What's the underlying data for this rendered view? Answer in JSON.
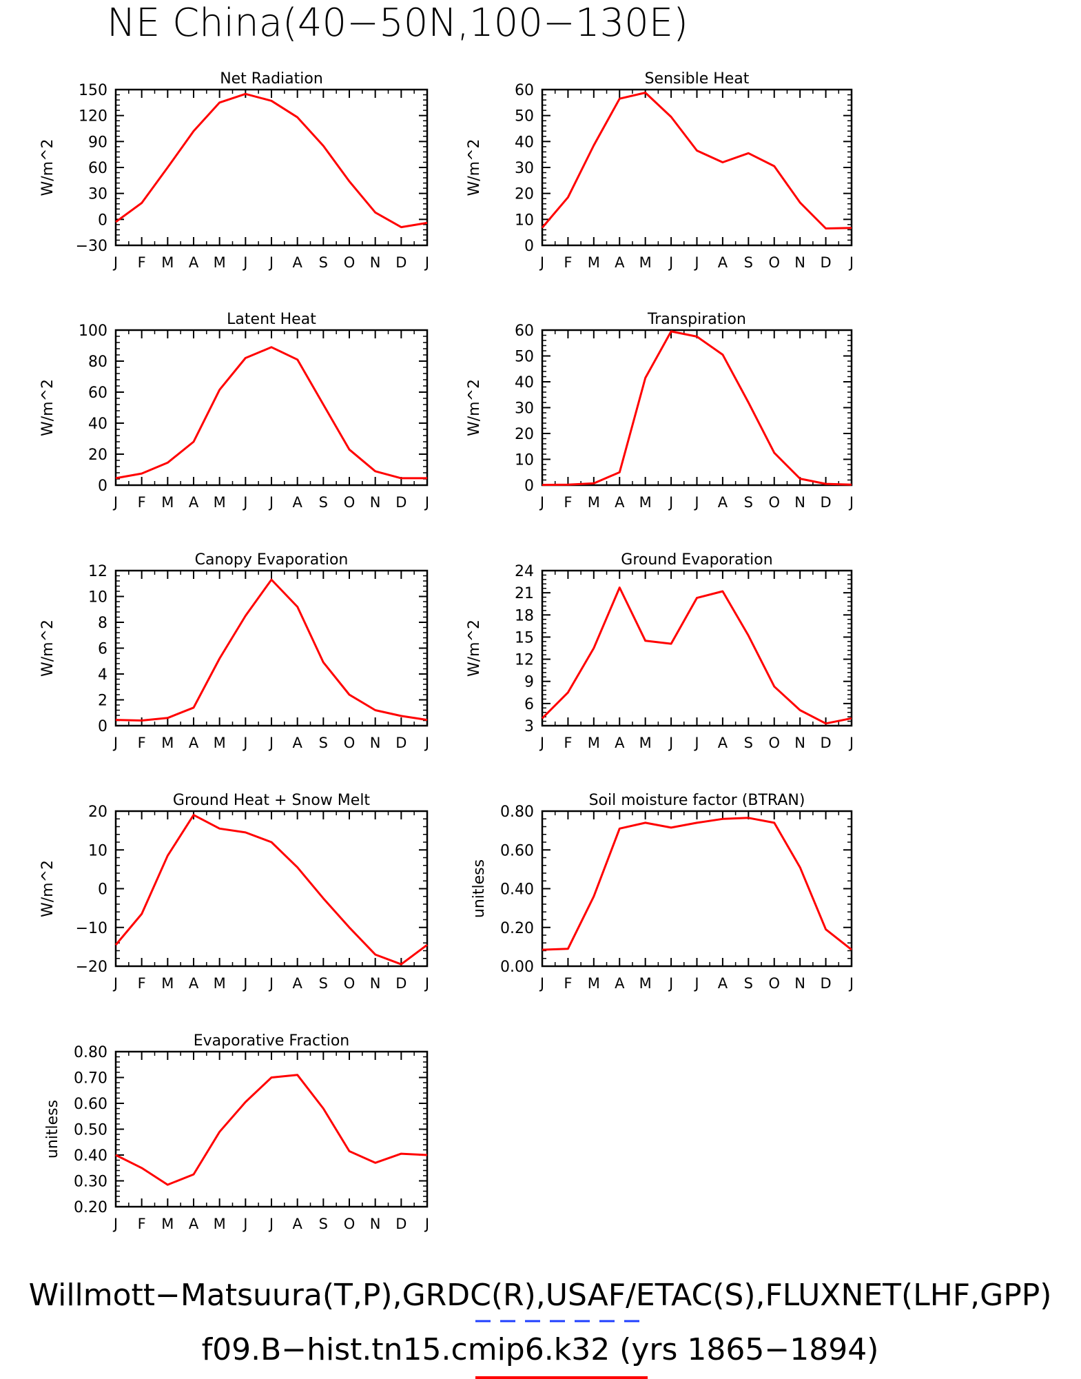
{
  "figure": {
    "title": "NE China(40−50N,100−130E)",
    "footer_line1": "Willmott−Matsuura(T,P),GRDC(R),USAF/ETAC(S),FLUXNET(LHF,GPP)",
    "footer_line2": "f09.B−hist.tn15.cmip6.k32 (yrs 1865−1894)",
    "line_color": "#ff0000",
    "obs_dash_color": "#1f3fff"
  },
  "chart_data": [
    {
      "type": "line",
      "title": "Net Radiation",
      "ylabel": "W/m^2",
      "categories": [
        "J",
        "F",
        "M",
        "A",
        "M",
        "J",
        "J",
        "A",
        "S",
        "O",
        "N",
        "D",
        "J"
      ],
      "ylim": [
        -30,
        150
      ],
      "yticks": [
        -30,
        0,
        30,
        60,
        90,
        120,
        150
      ],
      "ytick_labels": [
        "−30",
        "0",
        "30",
        "60",
        "90",
        "120",
        "150"
      ],
      "values": [
        -3,
        19,
        60,
        102,
        135,
        145,
        137,
        118,
        85,
        44,
        8,
        -9,
        -4
      ]
    },
    {
      "type": "line",
      "title": "Sensible Heat",
      "ylabel": "W/m^2",
      "categories": [
        "J",
        "F",
        "M",
        "A",
        "M",
        "J",
        "J",
        "A",
        "S",
        "O",
        "N",
        "D",
        "J"
      ],
      "ylim": [
        0,
        60
      ],
      "yticks": [
        0,
        10,
        20,
        30,
        40,
        50,
        60
      ],
      "ytick_labels": [
        "0",
        "10",
        "20",
        "30",
        "40",
        "50",
        "60"
      ],
      "values": [
        6.8,
        18.5,
        38.5,
        56.5,
        58.8,
        49.5,
        36.5,
        32,
        35.5,
        30.5,
        16.5,
        6.5,
        6.7
      ]
    },
    {
      "type": "line",
      "title": "Latent Heat",
      "ylabel": "W/m^2",
      "categories": [
        "J",
        "F",
        "M",
        "A",
        "M",
        "J",
        "J",
        "A",
        "S",
        "O",
        "N",
        "D",
        "J"
      ],
      "ylim": [
        0,
        100
      ],
      "yticks": [
        0,
        20,
        40,
        60,
        80,
        100
      ],
      "ytick_labels": [
        "0",
        "20",
        "40",
        "60",
        "80",
        "100"
      ],
      "values": [
        4.5,
        7.5,
        14.5,
        28,
        61.5,
        82,
        89,
        81,
        52,
        23,
        9,
        4.5,
        4.5
      ]
    },
    {
      "type": "line",
      "title": "Transpiration",
      "ylabel": "W/m^2",
      "categories": [
        "J",
        "F",
        "M",
        "A",
        "M",
        "J",
        "J",
        "A",
        "S",
        "O",
        "N",
        "D",
        "J"
      ],
      "ylim": [
        0,
        60
      ],
      "yticks": [
        0,
        10,
        20,
        30,
        40,
        50,
        60
      ],
      "ytick_labels": [
        "0",
        "10",
        "20",
        "30",
        "40",
        "50",
        "60"
      ],
      "values": [
        0.1,
        0.2,
        0.7,
        5,
        41.5,
        59.5,
        57.5,
        50.5,
        32,
        12.5,
        2.5,
        0.5,
        0.2
      ]
    },
    {
      "type": "line",
      "title": "Canopy Evaporation",
      "ylabel": "W/m^2",
      "categories": [
        "J",
        "F",
        "M",
        "A",
        "M",
        "J",
        "J",
        "A",
        "S",
        "O",
        "N",
        "D",
        "J"
      ],
      "ylim": [
        0,
        12
      ],
      "yticks": [
        0,
        2,
        4,
        6,
        8,
        10,
        12
      ],
      "ytick_labels": [
        "0",
        "2",
        "4",
        "6",
        "8",
        "10",
        "12"
      ],
      "values": [
        0.45,
        0.4,
        0.6,
        1.4,
        5.2,
        8.5,
        11.3,
        9.2,
        4.9,
        2.4,
        1.2,
        0.75,
        0.45
      ]
    },
    {
      "type": "line",
      "title": "Ground Evaporation",
      "ylabel": "W/m^2",
      "categories": [
        "J",
        "F",
        "M",
        "A",
        "M",
        "J",
        "J",
        "A",
        "S",
        "O",
        "N",
        "D",
        "J"
      ],
      "ylim": [
        3,
        24
      ],
      "yticks": [
        3,
        6,
        9,
        12,
        15,
        18,
        21,
        24
      ],
      "ytick_labels": [
        "3",
        "6",
        "9",
        "12",
        "15",
        "18",
        "21",
        "24"
      ],
      "values": [
        4,
        7.5,
        13.5,
        21.7,
        14.5,
        14.1,
        20.3,
        21.2,
        15.2,
        8.3,
        5.1,
        3.3,
        4
      ]
    },
    {
      "type": "line",
      "title": "Ground Heat + Snow Melt",
      "ylabel": "W/m^2",
      "categories": [
        "J",
        "F",
        "M",
        "A",
        "M",
        "J",
        "J",
        "A",
        "S",
        "O",
        "N",
        "D",
        "J"
      ],
      "ylim": [
        -20,
        20
      ],
      "yticks": [
        -20,
        -10,
        0,
        10,
        20
      ],
      "ytick_labels": [
        "−20",
        "−10",
        "0",
        "10",
        "20"
      ],
      "values": [
        -14.5,
        -6.5,
        8.5,
        19,
        15.5,
        14.5,
        12,
        5.5,
        -2.5,
        -10,
        -17,
        -19.5,
        -14.5
      ]
    },
    {
      "type": "line",
      "title": "Soil moisture factor (BTRAN)",
      "ylabel": "unitless",
      "categories": [
        "J",
        "F",
        "M",
        "A",
        "M",
        "J",
        "J",
        "A",
        "S",
        "O",
        "N",
        "D",
        "J"
      ],
      "ylim": [
        0,
        0.8
      ],
      "yticks": [
        0,
        0.2,
        0.4,
        0.6,
        0.8
      ],
      "ytick_labels": [
        "0.00",
        "0.20",
        "0.40",
        "0.60",
        "0.80"
      ],
      "values": [
        0.085,
        0.09,
        0.36,
        0.71,
        0.74,
        0.715,
        0.74,
        0.76,
        0.765,
        0.74,
        0.51,
        0.19,
        0.085
      ]
    },
    {
      "type": "line",
      "title": "Evaporative Fraction",
      "ylabel": "unitless",
      "categories": [
        "J",
        "F",
        "M",
        "A",
        "M",
        "J",
        "J",
        "A",
        "S",
        "O",
        "N",
        "D",
        "J"
      ],
      "ylim": [
        0.2,
        0.8
      ],
      "yticks": [
        0.2,
        0.3,
        0.4,
        0.5,
        0.6,
        0.7,
        0.8
      ],
      "ytick_labels": [
        "0.20",
        "0.30",
        "0.40",
        "0.50",
        "0.60",
        "0.70",
        "0.80"
      ],
      "values": [
        0.4,
        0.35,
        0.285,
        0.325,
        0.49,
        0.605,
        0.7,
        0.71,
        0.58,
        0.415,
        0.37,
        0.405,
        0.4
      ]
    }
  ]
}
